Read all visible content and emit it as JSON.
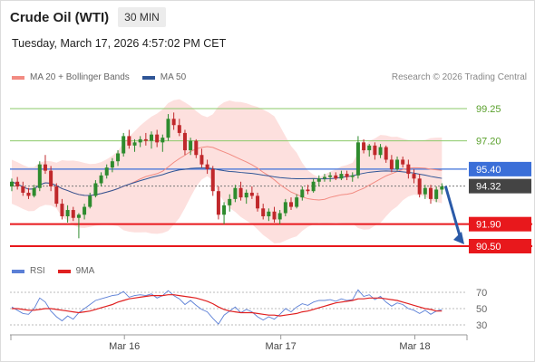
{
  "header": {
    "title": "Crude Oil (WTI)",
    "timeframe": "30 MIN",
    "datetime": "Tuesday, March 17, 2026 4:57:02 PM CET"
  },
  "legend": {
    "items": [
      {
        "label": "MA 20 + Bollinger Bands",
        "color": "#f28b82"
      },
      {
        "label": "MA 50",
        "color": "#2f5596"
      }
    ],
    "credit": "Research © 2026 Trading Central"
  },
  "rsi_legend": {
    "items": [
      {
        "label": "RSI",
        "color": "#5b7fd6"
      },
      {
        "label": "9MA",
        "color": "#e02020"
      }
    ]
  },
  "chart_data": [
    {
      "type": "candlestick",
      "title": "Crude Oil (WTI)",
      "ylim": [
        89.4,
        101.8
      ],
      "xticks": [
        {
          "label": "Mar 16",
          "index": 20
        },
        {
          "label": "Mar 17",
          "index": 48
        },
        {
          "label": "Mar 18",
          "index": 72
        }
      ],
      "levels": [
        {
          "value": 99.25,
          "label": "99.25",
          "kind": "resistance"
        },
        {
          "value": 97.2,
          "label": "97.20",
          "kind": "resistance"
        },
        {
          "value": 95.4,
          "label": "95.40",
          "kind": "pivot"
        },
        {
          "value": 94.32,
          "label": "94.32",
          "kind": "last"
        },
        {
          "value": 91.9,
          "label": "91.90",
          "kind": "support"
        },
        {
          "value": 90.5,
          "label": "90.50",
          "kind": "support"
        }
      ],
      "colors": {
        "up": "#2e8b2e",
        "down": "#c0282b",
        "bb": "#fde0de",
        "ma20": "#f28b82",
        "ma50": "#2f5596"
      },
      "candles": [
        [
          94.3,
          94.8,
          94.0,
          94.6
        ],
        [
          94.6,
          94.9,
          94.1,
          94.3
        ],
        [
          94.3,
          94.6,
          93.7,
          93.9
        ],
        [
          93.9,
          94.2,
          93.5,
          93.7
        ],
        [
          93.7,
          94.4,
          93.6,
          94.2
        ],
        [
          94.2,
          95.9,
          94.0,
          95.7
        ],
        [
          95.7,
          96.3,
          95.1,
          95.3
        ],
        [
          95.3,
          95.6,
          94.0,
          94.3
        ],
        [
          94.3,
          94.5,
          93.0,
          93.2
        ],
        [
          93.2,
          93.5,
          92.2,
          92.4
        ],
        [
          92.4,
          93.1,
          92.0,
          92.8
        ],
        [
          92.8,
          93.0,
          92.1,
          92.3
        ],
        [
          92.3,
          92.6,
          91.0,
          92.5
        ],
        [
          92.5,
          93.2,
          92.2,
          93.0
        ],
        [
          93.0,
          93.9,
          92.9,
          93.7
        ],
        [
          93.7,
          94.7,
          93.6,
          94.5
        ],
        [
          94.5,
          95.2,
          94.3,
          95.0
        ],
        [
          95.0,
          95.7,
          94.8,
          95.5
        ],
        [
          95.5,
          96.1,
          95.2,
          95.9
        ],
        [
          95.9,
          96.6,
          95.6,
          96.4
        ],
        [
          96.4,
          97.7,
          96.2,
          97.5
        ],
        [
          97.5,
          97.9,
          96.7,
          96.9
        ],
        [
          96.9,
          97.3,
          96.5,
          97.1
        ],
        [
          97.1,
          97.5,
          96.8,
          97.3
        ],
        [
          97.3,
          97.7,
          96.9,
          97.2
        ],
        [
          97.2,
          97.8,
          96.7,
          97.6
        ],
        [
          97.6,
          97.9,
          96.8,
          97.1
        ],
        [
          97.1,
          97.6,
          96.5,
          97.4
        ],
        [
          97.4,
          98.9,
          97.2,
          98.6
        ],
        [
          98.6,
          99.0,
          97.9,
          98.2
        ],
        [
          98.2,
          98.6,
          97.5,
          97.7
        ],
        [
          97.7,
          97.9,
          96.3,
          96.6
        ],
        [
          96.6,
          97.4,
          96.3,
          97.2
        ],
        [
          97.2,
          97.3,
          96.1,
          96.3
        ],
        [
          96.3,
          96.7,
          95.5,
          95.7
        ],
        [
          95.7,
          96.0,
          95.1,
          95.4
        ],
        [
          95.4,
          95.6,
          93.7,
          94.0
        ],
        [
          94.0,
          94.3,
          92.2,
          92.5
        ],
        [
          92.5,
          93.3,
          91.9,
          93.1
        ],
        [
          93.1,
          93.8,
          92.7,
          93.5
        ],
        [
          93.5,
          94.4,
          93.3,
          94.2
        ],
        [
          94.2,
          94.6,
          93.4,
          93.6
        ],
        [
          93.6,
          94.1,
          93.2,
          93.9
        ],
        [
          93.9,
          94.3,
          93.5,
          93.7
        ],
        [
          93.7,
          93.9,
          92.7,
          92.9
        ],
        [
          92.9,
          93.2,
          92.2,
          92.4
        ],
        [
          92.4,
          92.9,
          92.1,
          92.7
        ],
        [
          92.7,
          93.0,
          92.0,
          92.2
        ],
        [
          92.2,
          92.8,
          91.9,
          92.6
        ],
        [
          92.6,
          93.5,
          92.4,
          93.3
        ],
        [
          93.3,
          93.6,
          92.8,
          93.0
        ],
        [
          93.0,
          93.8,
          92.9,
          93.6
        ],
        [
          93.6,
          94.3,
          93.4,
          94.1
        ],
        [
          94.1,
          94.4,
          93.8,
          94.0
        ],
        [
          94.0,
          94.8,
          93.9,
          94.6
        ],
        [
          94.6,
          95.0,
          94.3,
          94.8
        ],
        [
          94.8,
          95.1,
          94.6,
          94.9
        ],
        [
          94.9,
          95.2,
          94.6,
          95.0
        ],
        [
          95.0,
          95.2,
          94.7,
          94.8
        ],
        [
          94.8,
          95.3,
          94.7,
          95.1
        ],
        [
          95.1,
          95.3,
          94.7,
          94.9
        ],
        [
          94.9,
          95.2,
          94.6,
          95.0
        ],
        [
          95.0,
          97.5,
          94.8,
          97.1
        ],
        [
          97.1,
          97.3,
          96.4,
          96.6
        ],
        [
          96.6,
          97.0,
          96.2,
          96.9
        ],
        [
          96.9,
          97.1,
          96.0,
          96.3
        ],
        [
          96.3,
          97.0,
          96.1,
          96.8
        ],
        [
          96.8,
          96.9,
          95.8,
          96.0
        ],
        [
          96.0,
          96.3,
          95.2,
          95.4
        ],
        [
          95.4,
          96.2,
          95.3,
          96.0
        ],
        [
          96.0,
          96.2,
          95.5,
          95.7
        ],
        [
          95.7,
          96.0,
          94.8,
          95.1
        ],
        [
          95.1,
          95.4,
          94.5,
          94.8
        ],
        [
          94.8,
          95.1,
          93.6,
          93.8
        ],
        [
          93.8,
          94.4,
          93.5,
          94.2
        ],
        [
          94.2,
          94.4,
          93.2,
          93.5
        ],
        [
          93.5,
          94.3,
          93.3,
          94.1
        ],
        [
          94.1,
          94.5,
          93.8,
          94.3
        ]
      ]
    },
    {
      "type": "line",
      "name": "RSI panel",
      "ylim": [
        20,
        80
      ],
      "yticks": [
        70,
        50,
        30
      ],
      "series": [
        {
          "name": "RSI",
          "color": "#5b7fd6",
          "values": [
            52,
            48,
            44,
            43,
            50,
            63,
            58,
            47,
            40,
            35,
            41,
            37,
            45,
            50,
            55,
            60,
            62,
            64,
            66,
            67,
            71,
            64,
            66,
            67,
            66,
            68,
            63,
            66,
            72,
            66,
            62,
            55,
            60,
            54,
            49,
            46,
            38,
            31,
            42,
            47,
            52,
            45,
            49,
            46,
            40,
            36,
            40,
            37,
            43,
            50,
            46,
            52,
            56,
            54,
            58,
            60,
            60,
            61,
            59,
            62,
            60,
            61,
            73,
            65,
            67,
            61,
            65,
            58,
            53,
            57,
            55,
            50,
            48,
            44,
            48,
            43,
            47,
            49
          ]
        },
        {
          "name": "9MA",
          "color": "#e02020",
          "values": [
            50,
            50,
            49,
            48,
            48,
            49,
            50,
            50,
            49,
            48,
            47,
            46,
            45,
            46,
            47,
            49,
            51,
            53,
            55,
            58,
            60,
            62,
            63,
            64,
            65,
            66,
            66,
            66,
            67,
            67,
            66,
            65,
            64,
            63,
            61,
            59,
            56,
            52,
            49,
            47,
            46,
            45,
            45,
            45,
            44,
            43,
            42,
            42,
            41,
            42,
            43,
            44,
            46,
            47,
            49,
            51,
            53,
            55,
            57,
            58,
            59,
            60,
            62,
            62,
            63,
            63,
            63,
            62,
            61,
            60,
            58,
            56,
            54,
            52,
            50,
            49,
            47,
            47
          ]
        }
      ]
    }
  ]
}
